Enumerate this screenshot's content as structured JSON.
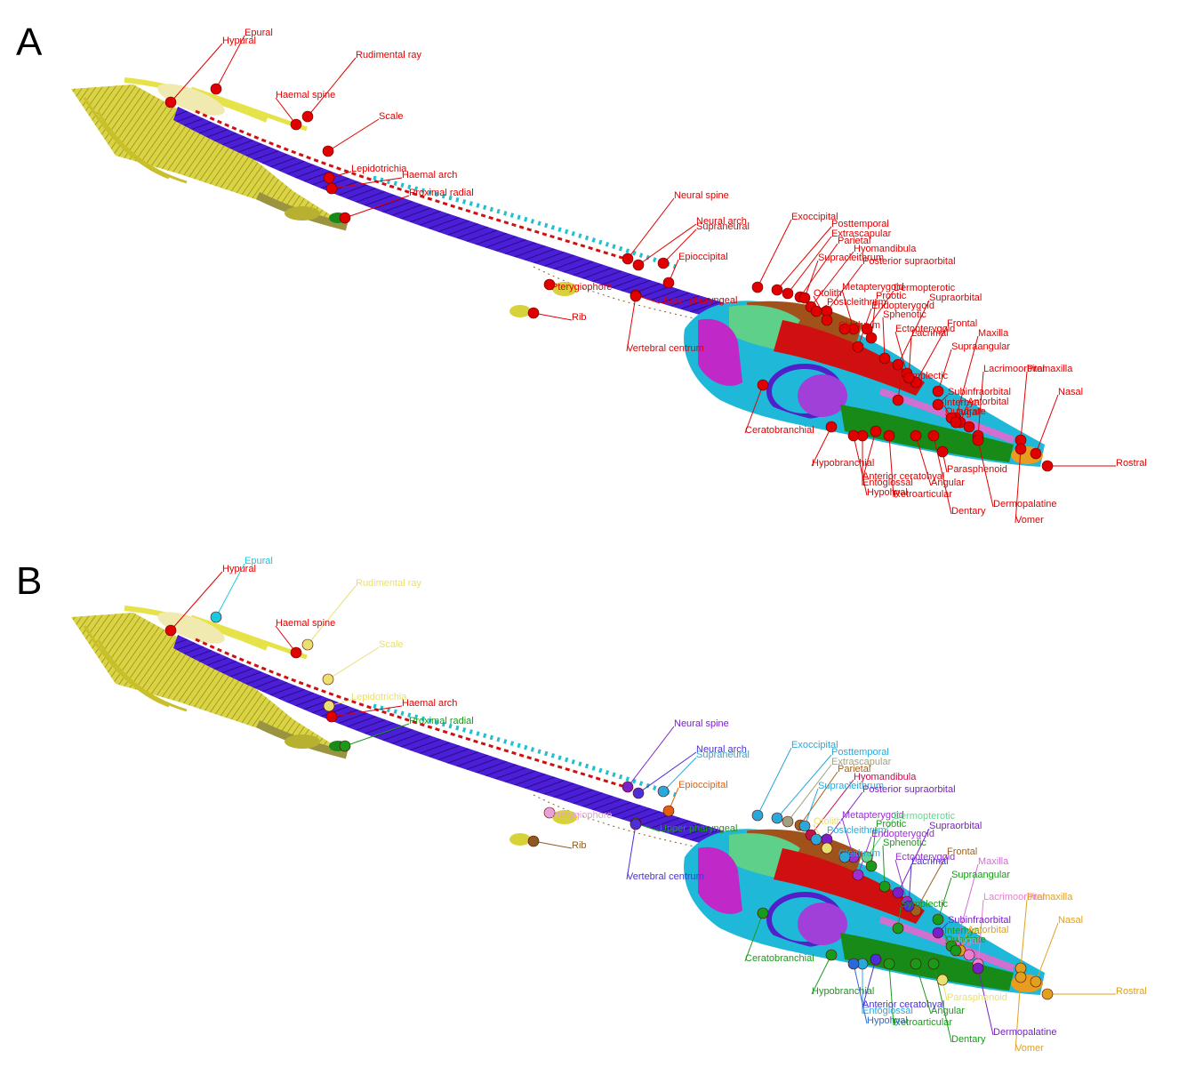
{
  "panels": [
    {
      "letter": "A",
      "colored": false,
      "labels": [
        {
          "text": "Epural",
          "color": "#e00000"
        },
        {
          "text": "Hypural",
          "color": "#e00000"
        },
        {
          "text": "Rudimental ray",
          "color": "#e00000"
        },
        {
          "text": "Haemal spine",
          "color": "#e00000"
        },
        {
          "text": "Scale",
          "color": "#e00000"
        },
        {
          "text": "Lepidotrichia",
          "color": "#e00000"
        },
        {
          "text": "Haemal arch",
          "color": "#e00000"
        },
        {
          "text": "Proximal radial",
          "color": "#e00000"
        },
        {
          "text": "Neural spine",
          "color": "#e00000"
        },
        {
          "text": "Neural arch",
          "color": "#e00000"
        },
        {
          "text": "Supraneural",
          "color": "#e00000"
        },
        {
          "text": "Epioccipital",
          "color": "#e00000"
        },
        {
          "text": "Pterygiophore",
          "color": "#e00000"
        },
        {
          "text": "Rib",
          "color": "#e00000"
        },
        {
          "text": "Upper pharyngeal",
          "color": "#e00000"
        },
        {
          "text": "Vertebral centrum",
          "color": "#e00000"
        },
        {
          "text": "Exoccipital",
          "color": "#e00000"
        },
        {
          "text": "Posttemporal",
          "color": "#e00000"
        },
        {
          "text": "Extrascapular",
          "color": "#e00000"
        },
        {
          "text": "Parietal",
          "color": "#e00000"
        },
        {
          "text": "Hyomandibula",
          "color": "#e00000"
        },
        {
          "text": "Supracleithrum",
          "color": "#e00000"
        },
        {
          "text": "Posterior supraorbital",
          "color": "#e00000"
        },
        {
          "text": "Otolith",
          "color": "#e00000"
        },
        {
          "text": "Postcleithrum",
          "color": "#e00000"
        },
        {
          "text": "Metapterygoid",
          "color": "#e00000"
        },
        {
          "text": "Dermopterotic",
          "color": "#e00000"
        },
        {
          "text": "Prootic",
          "color": "#e00000"
        },
        {
          "text": "Supraorbital",
          "color": "#e00000"
        },
        {
          "text": "Endopterygoid",
          "color": "#e00000"
        },
        {
          "text": "Sphenotic",
          "color": "#e00000"
        },
        {
          "text": "Cleithrum",
          "color": "#e00000"
        },
        {
          "text": "Ectopterygoid",
          "color": "#e00000"
        },
        {
          "text": "Frontal",
          "color": "#e00000"
        },
        {
          "text": "Lacrimal",
          "color": "#e00000"
        },
        {
          "text": "Maxilla",
          "color": "#e00000"
        },
        {
          "text": "Supraangular",
          "color": "#e00000"
        },
        {
          "text": "Symplectic",
          "color": "#e00000"
        },
        {
          "text": "Lacrimoorbital",
          "color": "#e00000"
        },
        {
          "text": "Premaxilla",
          "color": "#e00000"
        },
        {
          "text": "Subinfraorbital",
          "color": "#e00000"
        },
        {
          "text": "Nasal",
          "color": "#e00000"
        },
        {
          "text": "Interhyal",
          "color": "#e00000"
        },
        {
          "text": "Antorbital",
          "color": "#e00000"
        },
        {
          "text": "Quadrate",
          "color": "#e00000"
        },
        {
          "text": "Jugal",
          "color": "#e00000"
        },
        {
          "text": "Ceratobranchial",
          "color": "#e00000"
        },
        {
          "text": "Hypobranchial",
          "color": "#e00000"
        },
        {
          "text": "Parasphenoid",
          "color": "#e00000"
        },
        {
          "text": "Anterior ceratohyal",
          "color": "#e00000"
        },
        {
          "text": "Angular",
          "color": "#e00000"
        },
        {
          "text": "Entoglossal",
          "color": "#e00000"
        },
        {
          "text": "Retroarticular",
          "color": "#e00000"
        },
        {
          "text": "Hypohyal",
          "color": "#e00000"
        },
        {
          "text": "Rostral",
          "color": "#e00000"
        },
        {
          "text": "Dermopalatine",
          "color": "#e00000"
        },
        {
          "text": "Dentary",
          "color": "#e00000"
        },
        {
          "text": "Vomer",
          "color": "#e00000"
        }
      ]
    },
    {
      "letter": "B",
      "colored": true,
      "labels": [
        {
          "text": "Epural",
          "color": "#19c8e0"
        },
        {
          "text": "Hypural",
          "color": "#e00000"
        },
        {
          "text": "Rudimental ray",
          "color": "#e8e070"
        },
        {
          "text": "Haemal spine",
          "color": "#e00000"
        },
        {
          "text": "Scale",
          "color": "#e8e070"
        },
        {
          "text": "Lepidotrichia",
          "color": "#e8e070"
        },
        {
          "text": "Haemal arch",
          "color": "#e00000"
        },
        {
          "text": "Proximal radial",
          "color": "#1a9a1a"
        },
        {
          "text": "Neural spine",
          "color": "#7a20c8"
        },
        {
          "text": "Neural arch",
          "color": "#4b30d8"
        },
        {
          "text": "Supraneural",
          "color": "#2aa8d8"
        },
        {
          "text": "Epioccipital",
          "color": "#e06010"
        },
        {
          "text": "Pterygiophore",
          "color": "#e8a0d8"
        },
        {
          "text": "Rib",
          "color": "#8a5a20"
        },
        {
          "text": "Upper pharyngeal",
          "color": "#1a9a1a"
        },
        {
          "text": "Vertebral centrum",
          "color": "#4b30d8"
        },
        {
          "text": "Exoccipital",
          "color": "#2aa8d8"
        },
        {
          "text": "Posttemporal",
          "color": "#2aa8d8"
        },
        {
          "text": "Extrascapular",
          "color": "#a0a080"
        },
        {
          "text": "Parietal",
          "color": "#a06020"
        },
        {
          "text": "Hyomandibula",
          "color": "#c0104a"
        },
        {
          "text": "Supracleithrum",
          "color": "#2aa8d8"
        },
        {
          "text": "Posterior supraorbital",
          "color": "#7a20c8"
        },
        {
          "text": "Otolith",
          "color": "#e8e070"
        },
        {
          "text": "Postcleithrum",
          "color": "#2aa8d8"
        },
        {
          "text": "Metapterygoid",
          "color": "#9a30d0"
        },
        {
          "text": "Dermopterotic",
          "color": "#60d890"
        },
        {
          "text": "Prootic",
          "color": "#1a9a1a"
        },
        {
          "text": "Supraorbital",
          "color": "#7a20c8"
        },
        {
          "text": "Endopterygoid",
          "color": "#9a30d0"
        },
        {
          "text": "Sphenotic",
          "color": "#1a9a1a"
        },
        {
          "text": "Cleithrum",
          "color": "#2aa8d8"
        },
        {
          "text": "Ectopterygoid",
          "color": "#9a30d0"
        },
        {
          "text": "Frontal",
          "color": "#a06020"
        },
        {
          "text": "Lacrimal",
          "color": "#4b30d8"
        },
        {
          "text": "Maxilla",
          "color": "#d070d0"
        },
        {
          "text": "Supraangular",
          "color": "#1a9a1a"
        },
        {
          "text": "Symplectic",
          "color": "#1a9a1a"
        },
        {
          "text": "Lacrimoorbital",
          "color": "#e880d0"
        },
        {
          "text": "Premaxilla",
          "color": "#e0a020"
        },
        {
          "text": "Subinfraorbital",
          "color": "#7a20c8"
        },
        {
          "text": "Nasal",
          "color": "#e0a020"
        },
        {
          "text": "Interhyal",
          "color": "#1a9a1a"
        },
        {
          "text": "Antorbital",
          "color": "#e0a020"
        },
        {
          "text": "Quadrate",
          "color": "#1a9a1a"
        },
        {
          "text": "Jugal",
          "color": "#e880d0"
        },
        {
          "text": "Ceratobranchial",
          "color": "#1a9a1a"
        },
        {
          "text": "Hypobranchial",
          "color": "#1a9a1a"
        },
        {
          "text": "Parasphenoid",
          "color": "#e8e070"
        },
        {
          "text": "Anterior ceratohyal",
          "color": "#4b30d8"
        },
        {
          "text": "Angular",
          "color": "#1a9a1a"
        },
        {
          "text": "Entoglossal",
          "color": "#2aa8d8"
        },
        {
          "text": "Retroarticular",
          "color": "#1a9a1a"
        },
        {
          "text": "Hypohyal",
          "color": "#2a6ad8"
        },
        {
          "text": "Rostral",
          "color": "#e0a020"
        },
        {
          "text": "Dermopalatine",
          "color": "#7a20c8"
        },
        {
          "text": "Dentary",
          "color": "#1a9a1a"
        },
        {
          "text": "Vomer",
          "color": "#e0a020"
        }
      ]
    }
  ],
  "colors": {
    "label_red": "#e00000",
    "fin_yellow": "#e6e34a",
    "spine_blue": "#4a1fd6",
    "spine_cyan": "#20c0d0",
    "skull_brown": "#a0521a",
    "skull_green": "#5fd08a",
    "jaw_green": "#178a17",
    "skull_magenta": "#c028c8",
    "skull_cyan": "#20b8d8",
    "skull_red": "#d01010",
    "jaw_orange": "#e89c20"
  }
}
